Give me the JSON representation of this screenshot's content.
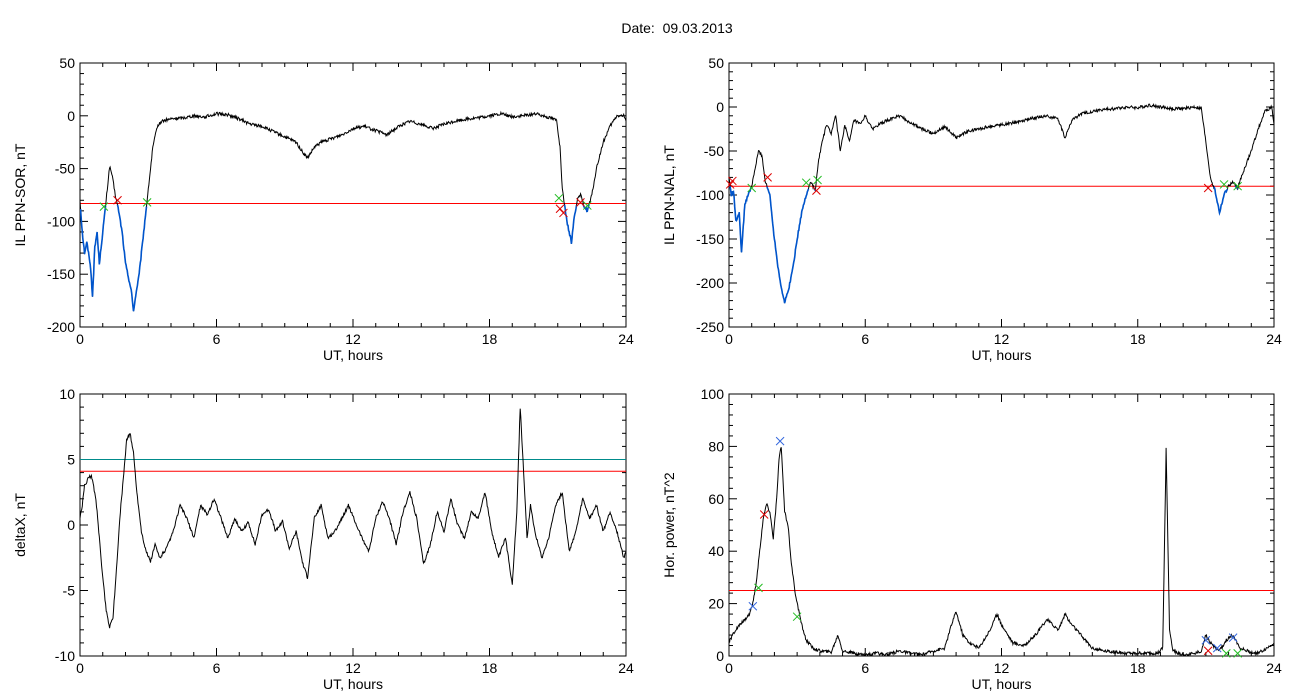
{
  "page": {
    "title": "Date:  09.03.2013"
  },
  "colors": {
    "trace": "#000000",
    "threshold": "#ff0000",
    "threshold2": "#008b8b",
    "highlight": "#0055cc",
    "marker_red": "#dd0000",
    "marker_green": "#22bb22",
    "marker_blue": "#3366dd"
  },
  "chart_data": [
    {
      "type": "line",
      "xlabel": "UT, hours",
      "ylabel": "IL PPN-SOR, nT",
      "xlim": [
        0,
        24
      ],
      "ylim": [
        -200,
        50
      ],
      "xticks": [
        0,
        6,
        12,
        18,
        24
      ],
      "yticks": [
        -200,
        -150,
        -100,
        -50,
        0,
        50
      ],
      "thresholds": [
        -83
      ],
      "series": [
        {
          "x": [
            0,
            0.1,
            0.2,
            0.3,
            0.45,
            0.55,
            0.65,
            0.75,
            0.85,
            0.95,
            1.05,
            1.15,
            1.3,
            1.4,
            1.55,
            1.7,
            1.85,
            2.0,
            2.1,
            2.25,
            2.35,
            2.45,
            2.6,
            2.75,
            2.9,
            3.05,
            3.2,
            3.4,
            3.6,
            3.8,
            4.0,
            4.5,
            5.0,
            5.5,
            6.0,
            6.5,
            7.0,
            7.5,
            8.0,
            8.5,
            9.0,
            9.5,
            9.8,
            10.0,
            10.3,
            10.6,
            11.0,
            11.5,
            12.0,
            12.5,
            13.0,
            13.5,
            14.0,
            14.5,
            15.0,
            15.5,
            16.0,
            16.5,
            17.0,
            17.5,
            18.0,
            18.5,
            19.0,
            19.5,
            20.0,
            20.4,
            20.7,
            20.95,
            21.1,
            21.2,
            21.3,
            21.4,
            21.5,
            21.6,
            21.7,
            21.85,
            22.0,
            22.15,
            22.3,
            22.5,
            22.7,
            23.0,
            23.3,
            23.6,
            23.9,
            24.0
          ],
          "y": [
            -80,
            -110,
            -130,
            -120,
            -140,
            -170,
            -125,
            -110,
            -140,
            -120,
            -100,
            -80,
            -48,
            -55,
            -75,
            -90,
            -110,
            -140,
            -150,
            -165,
            -185,
            -170,
            -150,
            -120,
            -90,
            -60,
            -30,
            -10,
            -5,
            -4,
            -3,
            -2,
            0,
            -1,
            2,
            1,
            -3,
            -8,
            -10,
            -15,
            -20,
            -25,
            -35,
            -40,
            -30,
            -25,
            -22,
            -18,
            -12,
            -10,
            -14,
            -18,
            -10,
            -5,
            -8,
            -12,
            -8,
            -5,
            -3,
            -2,
            0,
            2,
            -1,
            0,
            2,
            0,
            -2,
            -4,
            -30,
            -70,
            -85,
            -100,
            -110,
            -120,
            -100,
            -80,
            -75,
            -85,
            -90,
            -75,
            -50,
            -25,
            -10,
            0,
            0,
            -5
          ]
        }
      ],
      "highlight_ranges": [
        [
          0,
          3.1
        ],
        [
          20.95,
          22.5
        ]
      ],
      "markers": [
        {
          "x": 1.05,
          "y": -86,
          "color": "green"
        },
        {
          "x": 1.65,
          "y": -80,
          "color": "red"
        },
        {
          "x": 2.95,
          "y": -82,
          "color": "green"
        },
        {
          "x": 21.05,
          "y": -78,
          "color": "green"
        },
        {
          "x": 21.1,
          "y": -88,
          "color": "red"
        },
        {
          "x": 21.25,
          "y": -92,
          "color": "red"
        },
        {
          "x": 22.0,
          "y": -82,
          "color": "red"
        },
        {
          "x": 22.3,
          "y": -85,
          "color": "green"
        }
      ]
    },
    {
      "type": "line",
      "xlabel": "UT, hours",
      "ylabel": "IL PPN-NAL, nT",
      "xlim": [
        0,
        24
      ],
      "ylim": [
        -250,
        50
      ],
      "xticks": [
        0,
        6,
        12,
        18,
        24
      ],
      "yticks": [
        -250,
        -200,
        -150,
        -100,
        -50,
        0,
        50
      ],
      "thresholds": [
        -90
      ],
      "series": [
        {
          "x": [
            0,
            0.1,
            0.2,
            0.3,
            0.45,
            0.55,
            0.7,
            0.85,
            1.0,
            1.15,
            1.3,
            1.45,
            1.6,
            1.8,
            2.0,
            2.15,
            2.3,
            2.45,
            2.6,
            2.8,
            3.0,
            3.2,
            3.4,
            3.6,
            3.8,
            3.95,
            4.1,
            4.3,
            4.5,
            4.7,
            4.9,
            5.1,
            5.3,
            5.5,
            5.8,
            6.0,
            6.3,
            6.6,
            7.0,
            7.5,
            8.0,
            8.5,
            9.0,
            9.5,
            10.0,
            10.5,
            11.0,
            11.5,
            12.0,
            12.5,
            13.0,
            13.5,
            14.0,
            14.5,
            14.8,
            15.1,
            15.5,
            16.0,
            16.5,
            17.0,
            17.5,
            18.0,
            18.5,
            19.0,
            19.5,
            20.0,
            20.5,
            20.8,
            21.0,
            21.2,
            21.4,
            21.6,
            21.8,
            22.0,
            22.2,
            22.4,
            22.7,
            23.0,
            23.3,
            23.6,
            23.9,
            24.0
          ],
          "y": [
            -80,
            -100,
            -95,
            -130,
            -120,
            -165,
            -110,
            -100,
            -90,
            -70,
            -50,
            -55,
            -85,
            -100,
            -150,
            -180,
            -205,
            -222,
            -210,
            -185,
            -150,
            -120,
            -100,
            -85,
            -95,
            -60,
            -40,
            -20,
            -30,
            -10,
            -50,
            -20,
            -40,
            -15,
            -20,
            -10,
            -25,
            -20,
            -15,
            -10,
            -18,
            -25,
            -30,
            -22,
            -35,
            -28,
            -25,
            -22,
            -20,
            -18,
            -15,
            -12,
            -10,
            -14,
            -35,
            -15,
            -8,
            -5,
            -3,
            -2,
            0,
            -1,
            2,
            0,
            -2,
            -2,
            0,
            -2,
            -40,
            -80,
            -95,
            -120,
            -100,
            -90,
            -85,
            -92,
            -70,
            -50,
            -25,
            -5,
            0,
            -20
          ]
        }
      ],
      "highlight_ranges": [
        [
          0,
          3.9
        ],
        [
          21.0,
          22.4
        ]
      ],
      "markers": [
        {
          "x": 0.05,
          "y": -88,
          "color": "red"
        },
        {
          "x": 0.15,
          "y": -84,
          "color": "red"
        },
        {
          "x": 1.0,
          "y": -92,
          "color": "green"
        },
        {
          "x": 1.7,
          "y": -80,
          "color": "red"
        },
        {
          "x": 3.4,
          "y": -86,
          "color": "green"
        },
        {
          "x": 3.85,
          "y": -95,
          "color": "red"
        },
        {
          "x": 3.9,
          "y": -83,
          "color": "green"
        },
        {
          "x": 21.1,
          "y": -92,
          "color": "red"
        },
        {
          "x": 21.8,
          "y": -88,
          "color": "green"
        },
        {
          "x": 22.4,
          "y": -90,
          "color": "green"
        }
      ]
    },
    {
      "type": "line",
      "xlabel": "UT, hours",
      "ylabel": "deltaX, nT",
      "xlim": [
        0,
        24
      ],
      "ylim": [
        -10,
        10
      ],
      "xticks": [
        0,
        6,
        12,
        18,
        24
      ],
      "yticks": [
        -10,
        -5,
        0,
        5,
        10
      ],
      "thresholds": [
        4.1,
        5.0
      ],
      "series": [
        {
          "x": [
            0,
            0.1,
            0.2,
            0.35,
            0.5,
            0.7,
            0.85,
            1.0,
            1.15,
            1.3,
            1.45,
            1.6,
            1.75,
            1.9,
            2.05,
            2.2,
            2.35,
            2.5,
            2.7,
            2.9,
            3.1,
            3.3,
            3.5,
            3.8,
            4.1,
            4.4,
            4.7,
            5.0,
            5.3,
            5.6,
            5.9,
            6.2,
            6.5,
            6.8,
            7.1,
            7.4,
            7.7,
            8.0,
            8.3,
            8.6,
            8.9,
            9.2,
            9.5,
            9.8,
            10.0,
            10.3,
            10.6,
            10.9,
            11.2,
            11.5,
            11.8,
            12.1,
            12.4,
            12.7,
            13.0,
            13.3,
            13.6,
            13.9,
            14.2,
            14.5,
            14.8,
            15.1,
            15.4,
            15.7,
            16.0,
            16.3,
            16.6,
            16.9,
            17.2,
            17.5,
            17.8,
            18.1,
            18.4,
            18.7,
            19.0,
            19.2,
            19.35,
            19.5,
            19.65,
            19.8,
            20.0,
            20.3,
            20.6,
            20.9,
            21.2,
            21.5,
            21.8,
            22.1,
            22.4,
            22.7,
            23.0,
            23.3,
            23.6,
            23.9,
            24.0
          ],
          "y": [
            0.5,
            1.5,
            3.0,
            3.5,
            3.8,
            2.0,
            -1.0,
            -4.0,
            -6.5,
            -7.8,
            -7.0,
            -3.5,
            0.5,
            3.5,
            6.5,
            7.0,
            5.5,
            2.5,
            -0.5,
            -2.0,
            -2.8,
            -1.5,
            -2.5,
            -1.8,
            -0.5,
            1.5,
            0.5,
            -1.0,
            1.5,
            0.8,
            2.0,
            0.5,
            -1.0,
            0.5,
            -0.5,
            0.2,
            -1.5,
            0.8,
            1.2,
            -0.5,
            0.3,
            -1.8,
            -0.5,
            -3.0,
            -4.0,
            0.5,
            1.5,
            -1.0,
            -0.5,
            0.5,
            1.5,
            0.2,
            -1.0,
            -2.0,
            0.5,
            1.8,
            0.5,
            -1.5,
            1.0,
            2.5,
            0.5,
            -3.0,
            -1.5,
            1.0,
            -0.5,
            2.0,
            0.0,
            -1.0,
            1.0,
            0.5,
            2.5,
            -0.5,
            -2.5,
            -1.0,
            -4.5,
            1.0,
            9.0,
            4.0,
            -1.0,
            1.5,
            -0.5,
            -2.5,
            -1.0,
            1.5,
            2.5,
            -2.0,
            -0.5,
            2.0,
            0.5,
            1.5,
            -0.5,
            1.0,
            -0.5,
            -2.5,
            -2.0
          ]
        }
      ]
    },
    {
      "type": "line",
      "xlabel": "UT, hours",
      "ylabel": "Hor. power, nT^2",
      "xlim": [
        0,
        24
      ],
      "ylim": [
        0,
        100
      ],
      "xticks": [
        0,
        6,
        12,
        18,
        24
      ],
      "yticks": [
        0,
        20,
        40,
        60,
        80,
        100
      ],
      "thresholds": [
        25
      ],
      "series": [
        {
          "x": [
            0,
            0.15,
            0.3,
            0.5,
            0.7,
            0.9,
            1.05,
            1.2,
            1.35,
            1.5,
            1.65,
            1.8,
            1.95,
            2.1,
            2.2,
            2.3,
            2.45,
            2.6,
            2.75,
            2.9,
            3.05,
            3.2,
            3.4,
            3.7,
            4.0,
            4.5,
            4.8,
            5.0,
            5.5,
            6.0,
            6.5,
            7.0,
            7.5,
            8.0,
            8.5,
            9.0,
            9.5,
            9.8,
            10.0,
            10.3,
            10.6,
            11.0,
            11.5,
            11.8,
            12.0,
            12.5,
            13.0,
            13.5,
            14.0,
            14.5,
            14.8,
            15.0,
            15.5,
            16.0,
            16.5,
            17.0,
            17.5,
            18.0,
            18.5,
            18.9,
            19.1,
            19.25,
            19.4,
            19.55,
            19.8,
            20.0,
            20.5,
            20.8,
            21.0,
            21.3,
            21.6,
            21.9,
            22.2,
            22.5,
            22.8,
            23.1,
            23.4,
            23.7,
            24.0
          ],
          "y": [
            5,
            8,
            10,
            12,
            14,
            16,
            20,
            28,
            40,
            52,
            58,
            55,
            45,
            60,
            75,
            80,
            55,
            50,
            35,
            25,
            18,
            12,
            6,
            3,
            2,
            1.5,
            8,
            2,
            1,
            0.5,
            1,
            0.5,
            2,
            1,
            0.5,
            2,
            3,
            12,
            17,
            8,
            5,
            3,
            10,
            16,
            12,
            5,
            4,
            8,
            14,
            10,
            16,
            13,
            8,
            3,
            2,
            1.5,
            1,
            1,
            1,
            1,
            3,
            79,
            10,
            2,
            1,
            0.5,
            1,
            2,
            8,
            4,
            2,
            6,
            8,
            3,
            2,
            1,
            1.5,
            3,
            5
          ]
        }
      ],
      "markers": [
        {
          "x": 1.05,
          "y": 19,
          "color": "blue"
        },
        {
          "x": 1.3,
          "y": 26,
          "color": "green"
        },
        {
          "x": 1.55,
          "y": 54,
          "color": "red"
        },
        {
          "x": 2.25,
          "y": 82,
          "color": "blue"
        },
        {
          "x": 3.0,
          "y": 15,
          "color": "green"
        },
        {
          "x": 21.0,
          "y": 6,
          "color": "blue"
        },
        {
          "x": 21.1,
          "y": 2,
          "color": "red"
        },
        {
          "x": 21.5,
          "y": 3,
          "color": "blue"
        },
        {
          "x": 21.9,
          "y": 1,
          "color": "green"
        },
        {
          "x": 22.2,
          "y": 7,
          "color": "blue"
        },
        {
          "x": 22.4,
          "y": 1,
          "color": "green"
        }
      ]
    }
  ]
}
